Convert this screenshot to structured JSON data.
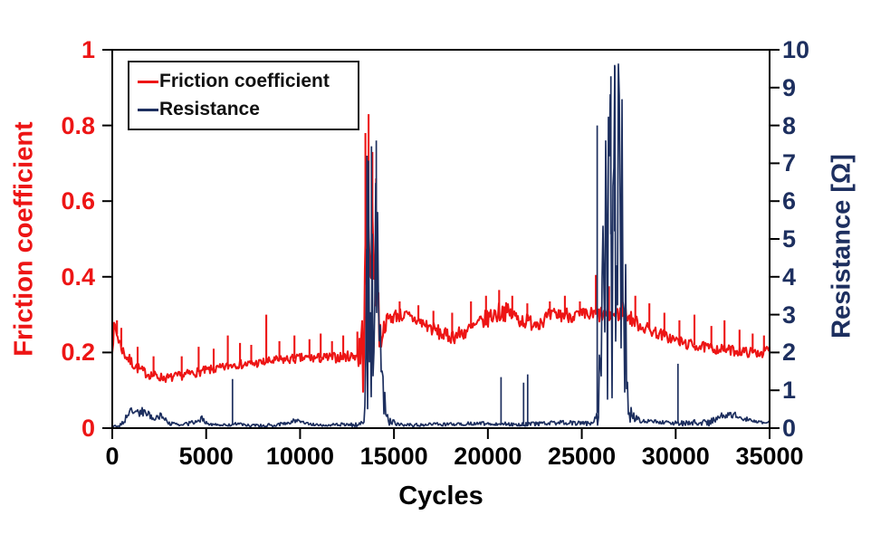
{
  "page": {
    "background": "#ffffff"
  },
  "chart_data": {
    "type": "line",
    "title": "",
    "xlabel": "Cycles",
    "xlim": [
      0,
      35000
    ],
    "grid": false,
    "x_ticks": [
      {
        "v": 0,
        "label": "0"
      },
      {
        "v": 5000,
        "label": "5000"
      },
      {
        "v": 10000,
        "label": "10000"
      },
      {
        "v": 15000,
        "label": "15000"
      },
      {
        "v": 20000,
        "label": "20000"
      },
      {
        "v": 25000,
        "label": "25000"
      },
      {
        "v": 30000,
        "label": "30000"
      },
      {
        "v": 35000,
        "label": "35000"
      }
    ],
    "axes": {
      "left": {
        "label": "Friction coefficient",
        "color": "#ed1515",
        "lim": [
          0,
          1
        ],
        "ticks": [
          {
            "v": 0,
            "label": "0"
          },
          {
            "v": 0.2,
            "label": "0.2"
          },
          {
            "v": 0.4,
            "label": "0.4"
          },
          {
            "v": 0.6,
            "label": "0.6"
          },
          {
            "v": 0.8,
            "label": "0.8"
          },
          {
            "v": 1,
            "label": "1"
          }
        ]
      },
      "right": {
        "label": "Resistance [Ω]",
        "color": "#1d2f5f",
        "lim": [
          0,
          10
        ],
        "ticks": [
          {
            "v": 0,
            "label": "0"
          },
          {
            "v": 1,
            "label": "1"
          },
          {
            "v": 2,
            "label": "2"
          },
          {
            "v": 3,
            "label": "3"
          },
          {
            "v": 4,
            "label": "4"
          },
          {
            "v": 5,
            "label": "5"
          },
          {
            "v": 6,
            "label": "6"
          },
          {
            "v": 7,
            "label": "7"
          },
          {
            "v": 8,
            "label": "8"
          },
          {
            "v": 9,
            "label": "9"
          },
          {
            "v": 10,
            "label": "10"
          }
        ]
      }
    },
    "legend": {
      "position": "top-left",
      "entries": [
        {
          "label": "Friction coefficient",
          "color": "#ed1515"
        },
        {
          "label": "Resistance",
          "color": "#1d2f5f"
        }
      ]
    },
    "series": [
      {
        "name": "Friction coefficient",
        "axis": "left",
        "color": "#ed1515",
        "vmax": 0.84,
        "baseline": [
          [
            0,
            0.22
          ],
          [
            120,
            0.27
          ],
          [
            300,
            0.24
          ],
          [
            600,
            0.2
          ],
          [
            900,
            0.18
          ],
          [
            1200,
            0.165
          ],
          [
            1600,
            0.15
          ],
          [
            2000,
            0.142
          ],
          [
            2500,
            0.135
          ],
          [
            3000,
            0.132
          ],
          [
            3600,
            0.138
          ],
          [
            4200,
            0.145
          ],
          [
            5000,
            0.152
          ],
          [
            5800,
            0.158
          ],
          [
            6500,
            0.17
          ],
          [
            7000,
            0.168
          ],
          [
            7800,
            0.172
          ],
          [
            8600,
            0.178
          ],
          [
            9400,
            0.182
          ],
          [
            10200,
            0.185
          ],
          [
            11000,
            0.185
          ],
          [
            12000,
            0.187
          ],
          [
            13000,
            0.192
          ],
          [
            13350,
            0.21
          ],
          [
            13500,
            0.42
          ],
          [
            13700,
            0.52
          ],
          [
            13900,
            0.46
          ],
          [
            14100,
            0.38
          ],
          [
            14250,
            0.24
          ],
          [
            14400,
            0.26
          ],
          [
            14700,
            0.29
          ],
          [
            15200,
            0.3
          ],
          [
            15700,
            0.295
          ],
          [
            16200,
            0.285
          ],
          [
            16800,
            0.27
          ],
          [
            17300,
            0.255
          ],
          [
            17800,
            0.243
          ],
          [
            18300,
            0.245
          ],
          [
            18800,
            0.255
          ],
          [
            19300,
            0.268
          ],
          [
            19800,
            0.285
          ],
          [
            20300,
            0.3
          ],
          [
            20800,
            0.31
          ],
          [
            21300,
            0.3
          ],
          [
            21800,
            0.285
          ],
          [
            22300,
            0.28
          ],
          [
            22800,
            0.283
          ],
          [
            23300,
            0.295
          ],
          [
            23800,
            0.3
          ],
          [
            24300,
            0.3
          ],
          [
            24800,
            0.297
          ],
          [
            25300,
            0.298
          ],
          [
            25800,
            0.3
          ],
          [
            26300,
            0.3
          ],
          [
            26800,
            0.3
          ],
          [
            27300,
            0.305
          ],
          [
            27600,
            0.29
          ],
          [
            28100,
            0.272
          ],
          [
            28600,
            0.26
          ],
          [
            29100,
            0.25
          ],
          [
            29600,
            0.24
          ],
          [
            30100,
            0.23
          ],
          [
            30600,
            0.222
          ],
          [
            31100,
            0.218
          ],
          [
            31600,
            0.213
          ],
          [
            32100,
            0.21
          ],
          [
            32600,
            0.208
          ],
          [
            33100,
            0.205
          ],
          [
            33600,
            0.202
          ],
          [
            34100,
            0.2
          ],
          [
            34600,
            0.2
          ],
          [
            35000,
            0.208
          ]
        ],
        "noise": [
          [
            0,
            0.02
          ],
          [
            1000,
            0.015
          ],
          [
            2500,
            0.012
          ],
          [
            8000,
            0.012
          ],
          [
            13000,
            0.014
          ],
          [
            13450,
            0.16
          ],
          [
            14200,
            0.08
          ],
          [
            14450,
            0.02
          ],
          [
            16000,
            0.018
          ],
          [
            19500,
            0.022
          ],
          [
            20500,
            0.028
          ],
          [
            21500,
            0.022
          ],
          [
            25000,
            0.02
          ],
          [
            26000,
            0.022
          ],
          [
            27500,
            0.02
          ],
          [
            29000,
            0.016
          ],
          [
            31000,
            0.014
          ],
          [
            35000,
            0.013
          ]
        ],
        "spikes": [
          [
            250,
            0.285
          ],
          [
            480,
            0.265
          ],
          [
            1350,
            0.215
          ],
          [
            2200,
            0.19
          ],
          [
            3700,
            0.19
          ],
          [
            4600,
            0.215
          ],
          [
            5400,
            0.21
          ],
          [
            6150,
            0.245
          ],
          [
            6800,
            0.225
          ],
          [
            7400,
            0.22
          ],
          [
            8200,
            0.3
          ],
          [
            8900,
            0.23
          ],
          [
            9700,
            0.245
          ],
          [
            10500,
            0.235
          ],
          [
            11100,
            0.25
          ],
          [
            11700,
            0.23
          ],
          [
            12300,
            0.245
          ],
          [
            13050,
            0.255
          ],
          [
            13480,
            0.78
          ],
          [
            13650,
            0.83
          ],
          [
            13850,
            0.73
          ],
          [
            14050,
            0.66
          ],
          [
            15300,
            0.335
          ],
          [
            16300,
            0.325
          ],
          [
            17100,
            0.31
          ],
          [
            18100,
            0.305
          ],
          [
            19100,
            0.335
          ],
          [
            19900,
            0.35
          ],
          [
            20600,
            0.365
          ],
          [
            21300,
            0.35
          ],
          [
            22100,
            0.33
          ],
          [
            23300,
            0.335
          ],
          [
            24100,
            0.35
          ],
          [
            24900,
            0.335
          ],
          [
            25750,
            0.405
          ],
          [
            26450,
            0.375
          ],
          [
            27150,
            0.365
          ],
          [
            27850,
            0.35
          ],
          [
            28600,
            0.33
          ],
          [
            29400,
            0.305
          ],
          [
            30200,
            0.285
          ],
          [
            31000,
            0.3
          ],
          [
            31900,
            0.27
          ],
          [
            32600,
            0.285
          ],
          [
            33400,
            0.26
          ],
          [
            34100,
            0.25
          ],
          [
            34700,
            0.245
          ]
        ]
      },
      {
        "name": "Resistance",
        "axis": "right",
        "color": "#1d2f5f",
        "vmax": 9.62,
        "baseline": [
          [
            0,
            0.03
          ],
          [
            500,
            0.08
          ],
          [
            800,
            0.35
          ],
          [
            1100,
            0.48
          ],
          [
            1400,
            0.4
          ],
          [
            1700,
            0.45
          ],
          [
            2000,
            0.32
          ],
          [
            2300,
            0.27
          ],
          [
            2600,
            0.33
          ],
          [
            2850,
            0.22
          ],
          [
            3100,
            0.12
          ],
          [
            3600,
            0.08
          ],
          [
            4100,
            0.12
          ],
          [
            4500,
            0.2
          ],
          [
            4800,
            0.25
          ],
          [
            5100,
            0.12
          ],
          [
            5600,
            0.08
          ],
          [
            6200,
            0.08
          ],
          [
            6600,
            0.12
          ],
          [
            7100,
            0.08
          ],
          [
            7700,
            0.06
          ],
          [
            8500,
            0.07
          ],
          [
            9200,
            0.12
          ],
          [
            9700,
            0.2
          ],
          [
            10100,
            0.18
          ],
          [
            10600,
            0.1
          ],
          [
            11200,
            0.08
          ],
          [
            12000,
            0.1
          ],
          [
            13000,
            0.08
          ],
          [
            13420,
            0.15
          ],
          [
            13550,
            3.8
          ],
          [
            13700,
            3.9
          ],
          [
            13900,
            4.0
          ],
          [
            14100,
            3.9
          ],
          [
            14250,
            2.5
          ],
          [
            14400,
            1.0
          ],
          [
            14550,
            0.5
          ],
          [
            14750,
            0.2
          ],
          [
            15200,
            0.1
          ],
          [
            16000,
            0.08
          ],
          [
            17000,
            0.1
          ],
          [
            18000,
            0.1
          ],
          [
            19000,
            0.12
          ],
          [
            20000,
            0.12
          ],
          [
            21000,
            0.11
          ],
          [
            22000,
            0.1
          ],
          [
            23000,
            0.12
          ],
          [
            24000,
            0.15
          ],
          [
            25000,
            0.12
          ],
          [
            25600,
            0.13
          ],
          [
            25900,
            0.5
          ],
          [
            26100,
            2.5
          ],
          [
            26300,
            5.0
          ],
          [
            26500,
            5.1
          ],
          [
            26700,
            5.2
          ],
          [
            26900,
            5.2
          ],
          [
            27100,
            5.1
          ],
          [
            27300,
            4.0
          ],
          [
            27420,
            1.2
          ],
          [
            27550,
            0.5
          ],
          [
            27750,
            0.3
          ],
          [
            28200,
            0.15
          ],
          [
            28700,
            0.2
          ],
          [
            29300,
            0.15
          ],
          [
            30000,
            0.12
          ],
          [
            30800,
            0.15
          ],
          [
            31800,
            0.15
          ],
          [
            32400,
            0.3
          ],
          [
            32900,
            0.38
          ],
          [
            33400,
            0.3
          ],
          [
            33900,
            0.22
          ],
          [
            34500,
            0.15
          ],
          [
            35000,
            0.15
          ]
        ],
        "noise": [
          [
            0,
            0.03
          ],
          [
            700,
            0.1
          ],
          [
            1800,
            0.12
          ],
          [
            2900,
            0.06
          ],
          [
            3600,
            0.04
          ],
          [
            4700,
            0.08
          ],
          [
            5400,
            0.03
          ],
          [
            9500,
            0.06
          ],
          [
            10800,
            0.03
          ],
          [
            13400,
            0.06
          ],
          [
            13560,
            3.7
          ],
          [
            14200,
            2.4
          ],
          [
            14350,
            0.8
          ],
          [
            14600,
            0.15
          ],
          [
            15200,
            0.04
          ],
          [
            25800,
            0.06
          ],
          [
            26050,
            2.2
          ],
          [
            26300,
            4.8
          ],
          [
            27250,
            4.8
          ],
          [
            27400,
            0.8
          ],
          [
            27700,
            0.12
          ],
          [
            28500,
            0.05
          ],
          [
            32400,
            0.1
          ],
          [
            33500,
            0.08
          ],
          [
            34200,
            0.04
          ],
          [
            35000,
            0.03
          ]
        ],
        "spikes": [
          [
            6400,
            1.3
          ],
          [
            13560,
            7.2
          ],
          [
            13800,
            7.45
          ],
          [
            14060,
            7.6
          ],
          [
            20700,
            1.35
          ],
          [
            21900,
            1.2
          ],
          [
            22120,
            1.42
          ],
          [
            25820,
            8.0
          ],
          [
            26550,
            9.3
          ],
          [
            26750,
            9.6
          ],
          [
            30120,
            1.7
          ]
        ]
      }
    ]
  }
}
